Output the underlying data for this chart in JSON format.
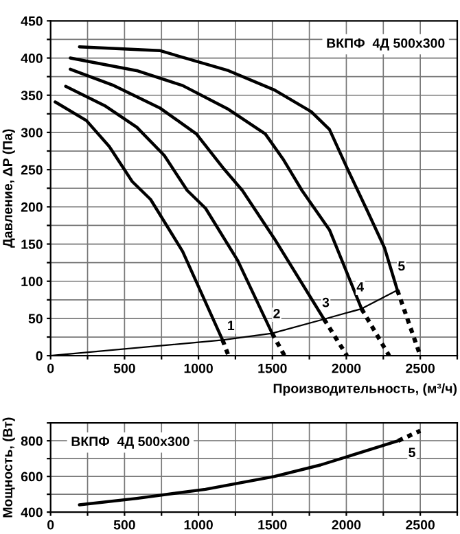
{
  "chart_data": [
    {
      "type": "line",
      "xlabel": "Производительность, (м³/ч)",
      "ylabel": "Давление, ΔP (Па)",
      "annotations": [
        "ВКПФ  4Д 500x300",
        {
          "text": "1",
          "x": 1219,
          "y": 39
        },
        {
          "text": "2",
          "x": 1529,
          "y": 55
        },
        {
          "text": "3",
          "x": 1861,
          "y": 70
        },
        {
          "text": "4",
          "x": 2094,
          "y": 91
        },
        {
          "text": "5",
          "x": 2373,
          "y": 119
        }
      ],
      "xlim": [
        0,
        2750
      ],
      "xticks": [
        0,
        {
          "value": 250,
          "label": null
        },
        500,
        {
          "value": 750,
          "label": null
        },
        1000,
        {
          "value": 1250,
          "label": null
        },
        1500,
        {
          "value": 1750,
          "label": null
        },
        2000,
        {
          "value": 2250,
          "label": null
        },
        2500,
        {
          "value": 2750,
          "label": null
        }
      ],
      "ylim": [
        0,
        450
      ],
      "yticks": [
        0,
        {
          "value": 25,
          "label": null
        },
        50,
        {
          "value": 75,
          "label": null
        },
        100,
        {
          "value": 125,
          "label": null
        },
        150,
        {
          "value": 175,
          "label": null
        },
        200,
        {
          "value": 225,
          "label": null
        },
        250,
        {
          "value": 275,
          "label": null
        },
        300,
        {
          "value": 325,
          "label": null
        },
        350,
        {
          "value": 375,
          "label": null
        },
        400,
        {
          "value": 425,
          "label": null
        },
        450
      ],
      "grid": true,
      "legend": false,
      "marker": "none",
      "series": [
        {
          "color": "#000000",
          "line_style": "solid",
          "x": [
            31,
            242,
            397,
            552,
            676,
            893,
            1163
          ],
          "values": [
            341,
            316,
            281,
            234,
            210,
            140,
            21
          ]
        },
        {
          "color": "#000000",
          "line_style": "dotted",
          "x": [
            1163,
            1203
          ],
          "values": [
            21,
            0
          ]
        },
        {
          "color": "#000000",
          "line_style": "solid",
          "x": [
            102,
            366,
            583,
            769,
            924,
            1048,
            1265,
            1498
          ],
          "values": [
            362,
            336,
            307,
            269,
            222,
            198,
            128,
            30
          ]
        },
        {
          "color": "#000000",
          "line_style": "dotted",
          "x": [
            1498,
            1582
          ],
          "values": [
            30,
            0
          ]
        },
        {
          "color": "#000000",
          "line_style": "solid",
          "x": [
            133,
            428,
            738,
            986,
            1172,
            1297,
            1514,
            1849
          ],
          "values": [
            385,
            363,
            333,
            298,
            251,
            222,
            157,
            49
          ]
        },
        {
          "color": "#000000",
          "line_style": "dotted",
          "x": [
            1849,
            2004
          ],
          "values": [
            49,
            0
          ]
        },
        {
          "color": "#000000",
          "line_style": "solid",
          "x": [
            133,
            583,
            893,
            1203,
            1452,
            1576,
            1700,
            1886,
            2103
          ],
          "values": [
            400,
            383,
            363,
            331,
            298,
            263,
            222,
            169,
            63
          ]
        },
        {
          "color": "#000000",
          "line_style": "dotted",
          "x": [
            2103,
            2289
          ],
          "values": [
            63,
            0
          ]
        },
        {
          "color": "#000000",
          "line_style": "solid",
          "x": [
            195,
            738,
            1203,
            1514,
            1762,
            1886,
            2010,
            2134,
            2258,
            2345
          ],
          "values": [
            415,
            410,
            383,
            357,
            328,
            304,
            250,
            198,
            145,
            88
          ]
        },
        {
          "color": "#000000",
          "line_style": "dotted",
          "x": [
            2345,
            2500
          ],
          "values": [
            88,
            0
          ]
        },
        {
          "color": "#000000",
          "line_style": "solid",
          "x": [
            0,
            1163,
            1498,
            1849,
            2103,
            2345
          ],
          "values": [
            0,
            21,
            30,
            49,
            63,
            88
          ]
        }
      ]
    },
    {
      "type": "line",
      "ylabel": "Мощность, (Вт)",
      "annotations": [
        "ВКПФ  4Д 500x300",
        {
          "text": "5",
          "x": 2444,
          "y": 728
        }
      ],
      "xlim": [
        0,
        2750
      ],
      "xticks": [
        0,
        {
          "value": 250,
          "label": null
        },
        500,
        {
          "value": 750,
          "label": null
        },
        1000,
        {
          "value": 1250,
          "label": null
        },
        1500,
        {
          "value": 1750,
          "label": null
        },
        2000,
        {
          "value": 2250,
          "label": null
        },
        2500,
        {
          "value": 2750,
          "label": null
        }
      ],
      "ylim": [
        400,
        900
      ],
      "yticks": [
        400,
        {
          "value": 500,
          "label": null
        },
        600,
        {
          "value": 700,
          "label": null
        },
        800,
        {
          "value": 900,
          "label": null
        }
      ],
      "grid": true,
      "legend": false,
      "marker": "none",
      "series": [
        {
          "color": "#000000",
          "line_style": "solid",
          "x": [
            195,
            583,
            1048,
            1514,
            1824,
            2072,
            2351
          ],
          "values": [
            441,
            477,
            528,
            600,
            664,
            728,
            800
          ]
        },
        {
          "color": "#000000",
          "line_style": "dotted",
          "x": [
            2351,
            2500
          ],
          "values": [
            800,
            856
          ]
        }
      ]
    }
  ]
}
